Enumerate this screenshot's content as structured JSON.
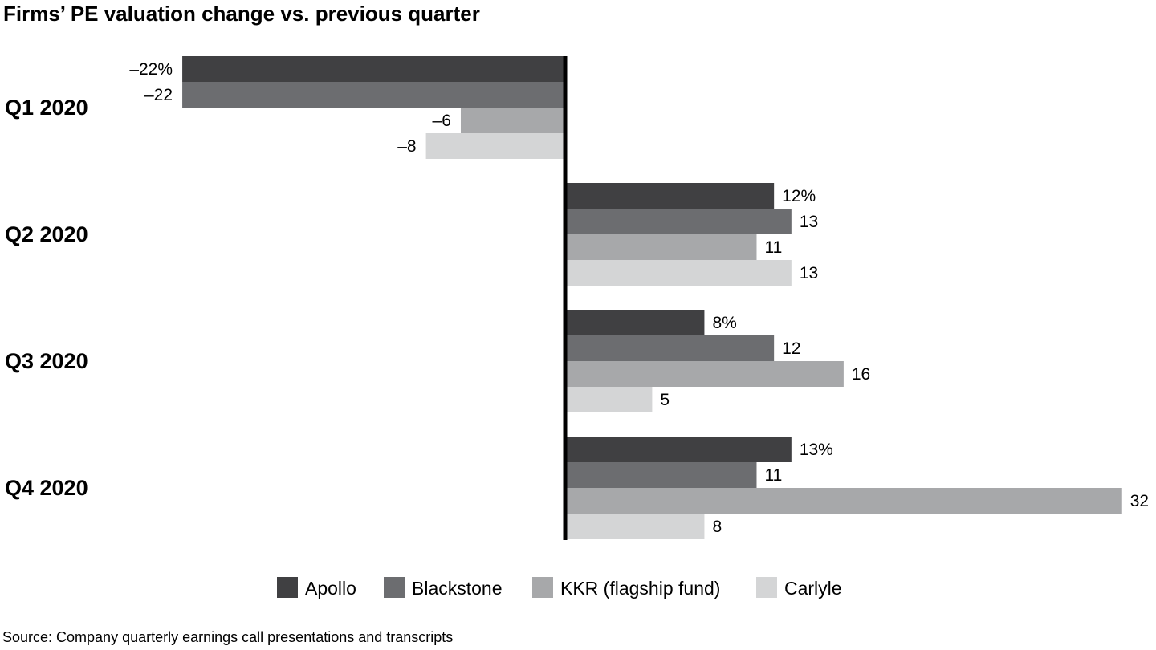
{
  "title": "Firms’ PE valuation change vs. previous quarter",
  "source": "Source: Company quarterly earnings call presentations and transcripts",
  "chart_data": {
    "type": "bar",
    "orientation": "horizontal",
    "title": "Firms’ PE valuation change vs. previous quarter",
    "categories": [
      "Q1 2020",
      "Q2 2020",
      "Q3 2020",
      "Q4 2020"
    ],
    "series": [
      {
        "name": "Apollo",
        "color": "#404042",
        "values": [
          -22,
          12,
          8,
          13
        ],
        "labels": [
          "–22%",
          "12%",
          "8%",
          "13%"
        ]
      },
      {
        "name": "Blackstone",
        "color": "#6c6d70",
        "values": [
          -22,
          13,
          12,
          11
        ],
        "labels": [
          "–22",
          "13",
          "12",
          "11"
        ]
      },
      {
        "name": "KKR (flagship fund)",
        "color": "#a7a8aa",
        "values": [
          -6,
          11,
          16,
          32
        ],
        "labels": [
          "–6",
          "11",
          "16",
          "32"
        ]
      },
      {
        "name": "Carlyle",
        "color": "#d4d5d6",
        "values": [
          -8,
          13,
          5,
          8
        ],
        "labels": [
          "–8",
          "13",
          "5",
          "8"
        ]
      }
    ],
    "legend_position": "bottom",
    "grid": false,
    "units": "%"
  }
}
